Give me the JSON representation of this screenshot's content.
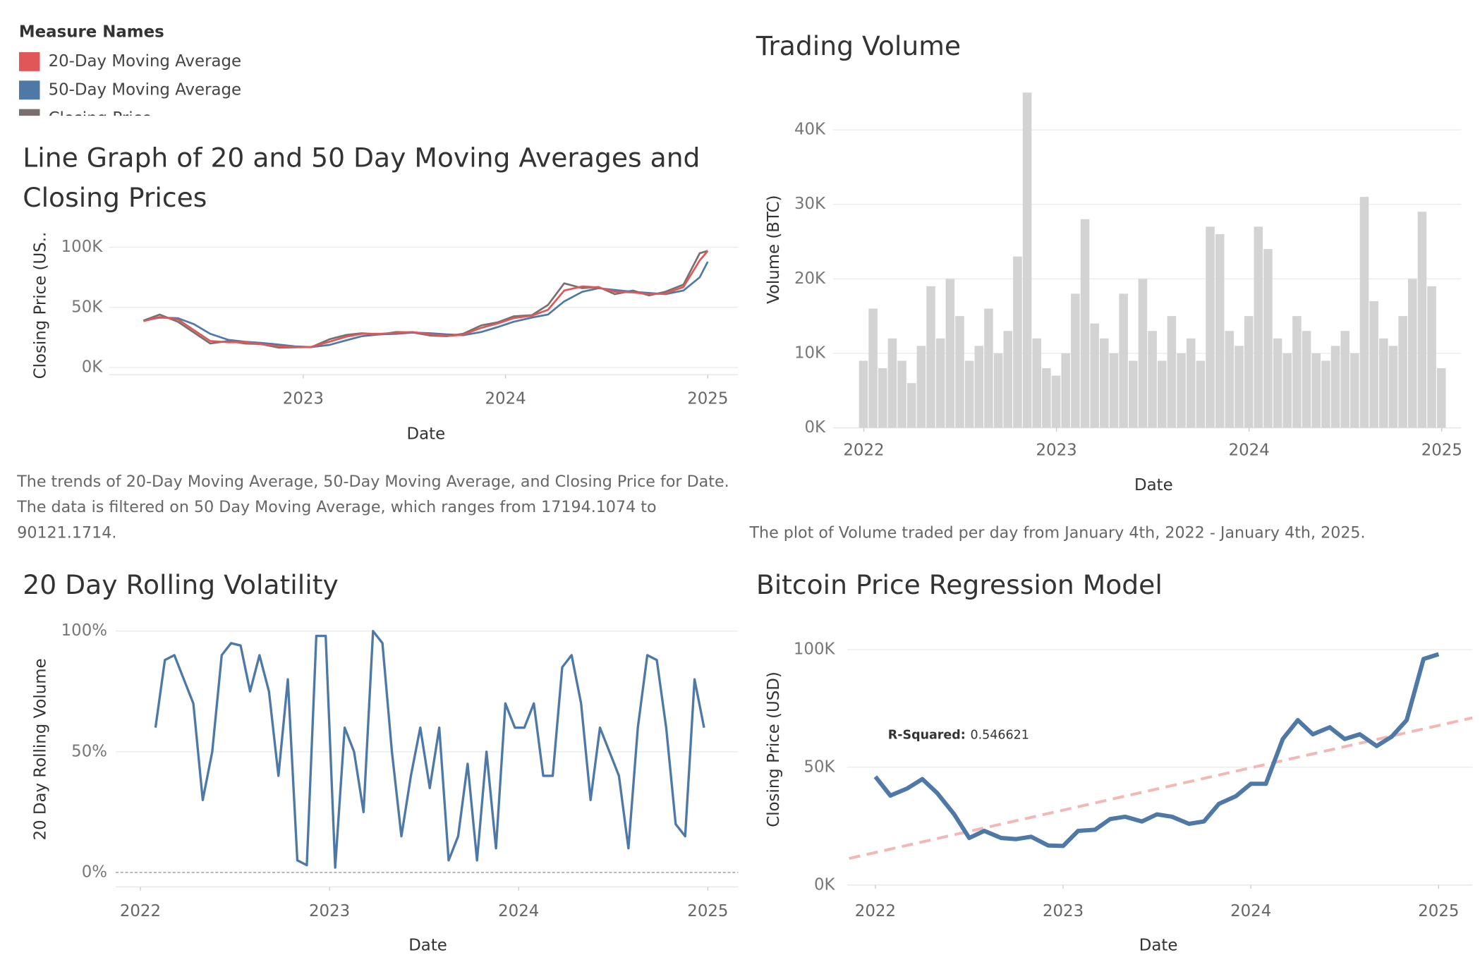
{
  "chart_data": [
    {
      "type": "line",
      "title": "Line Graph of 20 and 50 Day Moving Averages and Closing Prices",
      "legend_title": "Measure Names",
      "x_label": "Date",
      "y_label": "Closing Price (US..",
      "caption": "The trends of 20-Day Moving Average, 50-Day Moving Average, and Closing Price for Date.  The data is filtered on 50 Day Moving Average, which ranges from 17194.1074 to 90121.1714.",
      "x": [
        2022.21,
        2022.29,
        2022.38,
        2022.46,
        2022.54,
        2022.63,
        2022.71,
        2022.79,
        2022.88,
        2022.96,
        2023.04,
        2023.13,
        2023.21,
        2023.29,
        2023.38,
        2023.46,
        2023.54,
        2023.63,
        2023.71,
        2023.79,
        2023.88,
        2023.96,
        2024.04,
        2024.13,
        2024.21,
        2024.29,
        2024.38,
        2024.46,
        2024.54,
        2024.63,
        2024.71,
        2024.79,
        2024.88,
        2024.96,
        2025.0
      ],
      "series": [
        {
          "name": "20-Day Moving Average",
          "color": "#e15759",
          "values": [
            38500,
            42000,
            40000,
            31000,
            22000,
            21000,
            21000,
            19500,
            17500,
            16900,
            17200,
            21500,
            25500,
            28000,
            28000,
            28800,
            29500,
            27500,
            26300,
            27200,
            33000,
            36500,
            41000,
            43000,
            48000,
            64000,
            67500,
            66500,
            63000,
            62500,
            61000,
            61500,
            67000,
            89000,
            97000
          ]
        },
        {
          "name": "50-Day Moving Average",
          "color": "#4e79a7",
          "values": [
            39000,
            41500,
            41000,
            36000,
            28000,
            23000,
            21500,
            20500,
            19000,
            17500,
            17000,
            18800,
            22500,
            26000,
            27500,
            28000,
            29000,
            28500,
            27500,
            26800,
            29500,
            33500,
            38000,
            41500,
            44000,
            55000,
            63000,
            66000,
            64500,
            63000,
            62000,
            61000,
            64000,
            75000,
            88000
          ]
        },
        {
          "name": "Closing Price",
          "color": "#79706e",
          "values": [
            39000,
            44000,
            38000,
            29000,
            20000,
            22000,
            20000,
            19500,
            16500,
            16800,
            17000,
            23500,
            27000,
            28500,
            27500,
            29500,
            29200,
            26500,
            26000,
            28000,
            35000,
            37500,
            42500,
            43500,
            52000,
            70000,
            66000,
            67000,
            61000,
            64000,
            60000,
            63000,
            69000,
            95000,
            97000
          ]
        }
      ],
      "xlim": [
        2022.04,
        2025.15
      ],
      "xticks": [
        2023,
        2024,
        2025
      ],
      "ylim": [
        -6000,
        110000
      ],
      "yticks": [
        {
          "value": 0,
          "label": "0K"
        },
        {
          "value": 50000,
          "label": "50K"
        },
        {
          "value": 100000,
          "label": "100K"
        }
      ],
      "grid": true
    },
    {
      "type": "bar",
      "title": "Trading Volume",
      "x_label": "Date",
      "y_label": "Volume (BTC)",
      "caption": "The plot of Volume traded per day from January 4th, 2022 - January 4th, 2025.",
      "color": "#d3d3d3",
      "x": [
        2022.0,
        2022.05,
        2022.1,
        2022.15,
        2022.2,
        2022.25,
        2022.3,
        2022.35,
        2022.4,
        2022.45,
        2022.5,
        2022.55,
        2022.6,
        2022.65,
        2022.7,
        2022.75,
        2022.8,
        2022.85,
        2022.9,
        2022.95,
        2023.0,
        2023.05,
        2023.1,
        2023.15,
        2023.2,
        2023.25,
        2023.3,
        2023.35,
        2023.4,
        2023.45,
        2023.5,
        2023.55,
        2023.6,
        2023.65,
        2023.7,
        2023.75,
        2023.8,
        2023.85,
        2023.9,
        2023.95,
        2024.0,
        2024.05,
        2024.1,
        2024.15,
        2024.2,
        2024.25,
        2024.3,
        2024.35,
        2024.4,
        2024.45,
        2024.5,
        2024.55,
        2024.6,
        2024.65,
        2024.7,
        2024.75,
        2024.8,
        2024.85,
        2024.9,
        2024.95,
        2025.0
      ],
      "values": [
        9000,
        16000,
        8000,
        12000,
        9000,
        6000,
        11000,
        19000,
        12000,
        20000,
        15000,
        9000,
        11000,
        16000,
        10000,
        13000,
        23000,
        45000,
        12000,
        8000,
        7000,
        10000,
        18000,
        28000,
        14000,
        12000,
        10000,
        18000,
        9000,
        20000,
        13000,
        9000,
        15000,
        10000,
        12000,
        9000,
        27000,
        26000,
        13000,
        11000,
        15000,
        27000,
        24000,
        12000,
        10000,
        15000,
        13000,
        10000,
        9000,
        11000,
        13000,
        10000,
        31000,
        17000,
        12000,
        11000,
        15000,
        20000,
        29000,
        19000,
        8000
      ],
      "xlim": [
        2021.84,
        2025.1
      ],
      "xticks": [
        2022,
        2023,
        2024,
        2025
      ],
      "ylim": [
        0,
        46600
      ],
      "yticks": [
        {
          "value": 0,
          "label": "0K"
        },
        {
          "value": 10000,
          "label": "10K"
        },
        {
          "value": 20000,
          "label": "20K"
        },
        {
          "value": 30000,
          "label": "30K"
        },
        {
          "value": 40000,
          "label": "40K"
        }
      ],
      "grid": true
    },
    {
      "type": "line",
      "title": "20 Day Rolling Volatility",
      "x_label": "Date",
      "y_label": "20 Day Rolling Volume",
      "x": [
        2022.08,
        2022.13,
        2022.18,
        2022.23,
        2022.28,
        2022.33,
        2022.38,
        2022.43,
        2022.48,
        2022.53,
        2022.58,
        2022.63,
        2022.68,
        2022.73,
        2022.78,
        2022.83,
        2022.88,
        2022.93,
        2022.98,
        2023.03,
        2023.08,
        2023.13,
        2023.18,
        2023.23,
        2023.28,
        2023.33,
        2023.38,
        2023.43,
        2023.48,
        2023.53,
        2023.58,
        2023.63,
        2023.68,
        2023.73,
        2023.78,
        2023.83,
        2023.88,
        2023.93,
        2023.98,
        2024.03,
        2024.08,
        2024.13,
        2024.18,
        2024.23,
        2024.28,
        2024.33,
        2024.38,
        2024.43,
        2024.48,
        2024.53,
        2024.58,
        2024.63,
        2024.68,
        2024.73,
        2024.78,
        2024.83,
        2024.88,
        2024.93,
        2024.98
      ],
      "series": [
        {
          "color": "#4e79a7",
          "values": [
            60,
            88,
            90,
            80,
            70,
            30,
            50,
            90,
            95,
            94,
            75,
            90,
            75,
            40,
            80,
            5,
            3,
            98,
            98,
            2,
            60,
            50,
            25,
            100,
            95,
            50,
            15,
            40,
            60,
            35,
            60,
            5,
            15,
            45,
            5,
            50,
            10,
            70,
            60,
            60,
            70,
            40,
            40,
            85,
            90,
            70,
            30,
            60,
            50,
            40,
            10,
            60,
            90,
            88,
            60,
            20,
            15,
            80,
            60
          ]
        }
      ],
      "xlim": [
        2021.87,
        2025.16
      ],
      "xticks": [
        2022,
        2023,
        2024,
        2025
      ],
      "ylim": [
        -6,
        106
      ],
      "yticks": [
        {
          "value": 0,
          "label": "0%"
        },
        {
          "value": 50,
          "label": "50%"
        },
        {
          "value": 100,
          "label": "100%"
        }
      ],
      "grid": true,
      "zero_line": "dashed"
    },
    {
      "type": "line",
      "title": "Bitcoin Price Regression Model",
      "x_label": "Date",
      "y_label": "Closing Price (USD)",
      "annotation": {
        "label": "R-Squared:",
        "value": 0.546621
      },
      "x": [
        2022.0,
        2022.08,
        2022.17,
        2022.25,
        2022.33,
        2022.42,
        2022.5,
        2022.58,
        2022.67,
        2022.75,
        2022.83,
        2022.92,
        2023.0,
        2023.08,
        2023.17,
        2023.25,
        2023.33,
        2023.42,
        2023.5,
        2023.58,
        2023.67,
        2023.75,
        2023.83,
        2023.92,
        2024.0,
        2024.08,
        2024.17,
        2024.25,
        2024.33,
        2024.42,
        2024.5,
        2024.58,
        2024.67,
        2024.75,
        2024.83,
        2024.92,
        2025.0
      ],
      "series": [
        {
          "color": "#4e79a7",
          "values": [
            46000,
            38000,
            41000,
            45000,
            39000,
            30000,
            20000,
            23000,
            20000,
            19500,
            20500,
            16800,
            16600,
            23000,
            23500,
            28000,
            29000,
            27000,
            30000,
            29000,
            26000,
            27000,
            34500,
            37700,
            43000,
            43000,
            62000,
            70000,
            64000,
            67000,
            62000,
            64000,
            59000,
            63000,
            70000,
            96000,
            98000
          ]
        }
      ],
      "trend": {
        "color": "#f2b8b8",
        "x": [
          2021.86,
          2025.18
        ],
        "values": [
          11300,
          71000
        ]
      },
      "xlim": [
        2021.85,
        2025.18
      ],
      "xticks": [
        2022,
        2023,
        2024,
        2025
      ],
      "ylim": [
        0,
        114000
      ],
      "yticks": [
        {
          "value": 0,
          "label": "0K"
        },
        {
          "value": 50000,
          "label": "50K"
        },
        {
          "value": 100000,
          "label": "100K"
        }
      ],
      "grid": true
    }
  ]
}
